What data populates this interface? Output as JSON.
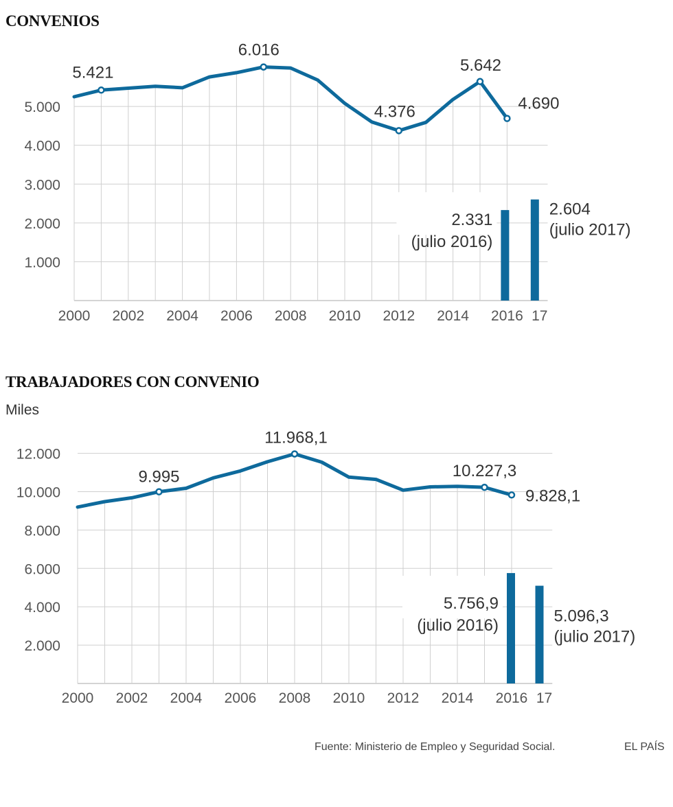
{
  "chart_data": [
    {
      "type": "line",
      "title": "CONVENIOS",
      "x": [
        2000,
        2001,
        2002,
        2003,
        2004,
        2005,
        2006,
        2007,
        2008,
        2009,
        2010,
        2011,
        2012,
        2013,
        2014,
        2015,
        2016
      ],
      "values": [
        5250,
        5421,
        5470,
        5520,
        5480,
        5760,
        5870,
        6016,
        5990,
        5680,
        5080,
        4600,
        4376,
        4590,
        5180,
        5642,
        4690
      ],
      "point_labels": [
        {
          "x": 2001,
          "label": "5.421"
        },
        {
          "x": 2007,
          "label": "6.016"
        },
        {
          "x": 2012,
          "label": "4.376"
        },
        {
          "x": 2015,
          "label": "5.642"
        },
        {
          "x": 2016,
          "label": "4.690"
        }
      ],
      "bars": [
        {
          "x": 2016,
          "value": 2331,
          "label": "2.331",
          "sublabel": "(julio 2016)"
        },
        {
          "x": 2017,
          "value": 2604,
          "label": "2.604",
          "sublabel": "(julio 2017)"
        }
      ],
      "ylim": [
        0,
        6500
      ],
      "yticks": [
        1000,
        2000,
        3000,
        4000,
        5000
      ],
      "ytick_labels": [
        "1.000",
        "2.000",
        "3.000",
        "4.000",
        "5.000"
      ],
      "xtick_labels": [
        "2000",
        "2002",
        "2004",
        "2006",
        "2008",
        "2010",
        "2012",
        "2014",
        "2016",
        "17"
      ],
      "color": "#0e6a9c",
      "grid": true
    },
    {
      "type": "line",
      "title": "TRABAJADORES CON CONVENIO",
      "units": "Miles",
      "x": [
        2000,
        2001,
        2002,
        2003,
        2004,
        2005,
        2006,
        2007,
        2008,
        2009,
        2010,
        2011,
        2012,
        2013,
        2014,
        2015,
        2016
      ],
      "values": [
        9200,
        9480,
        9680,
        9995,
        10180,
        10720,
        11080,
        11560,
        11968.1,
        11540,
        10760,
        10640,
        10080,
        10250,
        10280,
        10227.3,
        9828.1
      ],
      "point_labels": [
        {
          "x": 2003,
          "label": "9.995"
        },
        {
          "x": 2008,
          "label": "11.968,1"
        },
        {
          "x": 2015,
          "label": "10.227,3"
        },
        {
          "x": 2016,
          "label": "9.828,1"
        }
      ],
      "bars": [
        {
          "x": 2016,
          "value": 5756.9,
          "label": "5.756,9",
          "sublabel": "(julio 2016)"
        },
        {
          "x": 2017,
          "value": 5096.3,
          "label": "5.096,3",
          "sublabel": "(julio 2017)"
        }
      ],
      "ylim": [
        0,
        12500
      ],
      "yticks": [
        2000,
        4000,
        6000,
        8000,
        10000,
        12000
      ],
      "ytick_labels": [
        "2.000",
        "4.000",
        "6.000",
        "8.000",
        "10.000",
        "12.000"
      ],
      "xtick_labels": [
        "2000",
        "2002",
        "2004",
        "2006",
        "2008",
        "2010",
        "2012",
        "2014",
        "2016",
        "17"
      ],
      "color": "#0e6a9c",
      "grid": true
    }
  ],
  "footer": {
    "source": "Fuente: Ministerio de Empleo y Seguridad Social.",
    "brand": "EL PAÍS"
  }
}
